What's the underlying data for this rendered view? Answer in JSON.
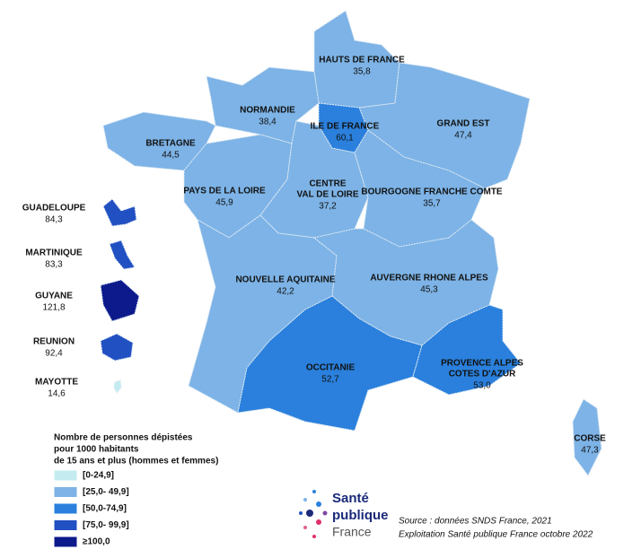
{
  "legend": {
    "title": [
      "Nombre de personnes dépistées",
      "pour 1000 habitants",
      "de 15 ans et plus (hommes et femmes)"
    ],
    "classes": [
      {
        "label": "[0-24,9]",
        "from": 0,
        "color": "#c4ecf0"
      },
      {
        "label": "[25,0- 49,9]",
        "from": 25,
        "color": "#7db3e6"
      },
      {
        "label": "[50,0-74,9]",
        "from": 50,
        "color": "#2a80dc"
      },
      {
        "label": "[75,0- 99,9]",
        "from": 75,
        "color": "#2150c2"
      },
      {
        "label": "≥100,0",
        "from": 100,
        "color": "#0d1a8c"
      }
    ]
  },
  "regions": [
    {
      "name": [
        "HAUTS DE FRANCE"
      ],
      "value": 35.8,
      "value_label": "35,8"
    },
    {
      "name": [
        "NORMANDIE"
      ],
      "value": 38.4,
      "value_label": "38,4"
    },
    {
      "name": [
        "ILE DE FRANCE"
      ],
      "value": 60.1,
      "value_label": "60,1"
    },
    {
      "name": [
        "GRAND EST"
      ],
      "value": 47.4,
      "value_label": "47,4"
    },
    {
      "name": [
        "BRETAGNE"
      ],
      "value": 44.5,
      "value_label": "44,5"
    },
    {
      "name": [
        "PAYS DE LA LOIRE"
      ],
      "value": 45.9,
      "value_label": "45,9"
    },
    {
      "name": [
        "CENTRE",
        "VAL DE LOIRE"
      ],
      "value": 37.2,
      "value_label": "37,2"
    },
    {
      "name": [
        "BOURGOGNE FRANCHE COMTE"
      ],
      "value": 35.7,
      "value_label": "35,7"
    },
    {
      "name": [
        "NOUVELLE AQUITAINE"
      ],
      "value": 42.2,
      "value_label": "42,2"
    },
    {
      "name": [
        "AUVERGNE RHONE ALPES"
      ],
      "value": 45.3,
      "value_label": "45,3"
    },
    {
      "name": [
        "OCCITANIE"
      ],
      "value": 52.7,
      "value_label": "52,7"
    },
    {
      "name": [
        "PROVENCE ALPES",
        "COTES D'AZUR"
      ],
      "value": 53.0,
      "value_label": "53,0"
    },
    {
      "name": [
        "CORSE"
      ],
      "value": 47.3,
      "value_label": "47,3"
    },
    {
      "name": [
        "GUADELOUPE"
      ],
      "value": 84.3,
      "value_label": "84,3"
    },
    {
      "name": [
        "MARTINIQUE"
      ],
      "value": 83.3,
      "value_label": "83,3"
    },
    {
      "name": [
        "GUYANE"
      ],
      "value": 121.8,
      "value_label": "121,8"
    },
    {
      "name": [
        "REUNION"
      ],
      "value": 92.4,
      "value_label": "92,4"
    },
    {
      "name": [
        "MAYOTTE"
      ],
      "value": 14.6,
      "value_label": "14,6"
    }
  ],
  "logo": [
    "Santé",
    "publique",
    "France"
  ],
  "source": [
    "Source : données SNDS France, 2021",
    "Exploitation Santé publique France octobre 2022"
  ]
}
